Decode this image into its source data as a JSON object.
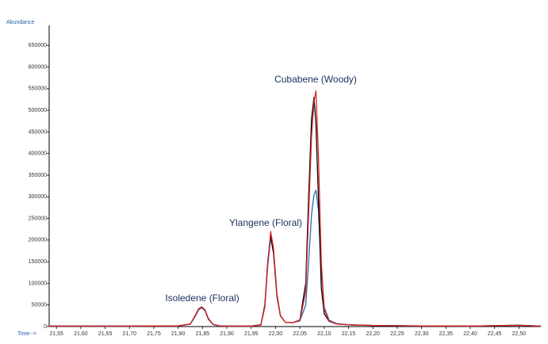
{
  "chart_data": {
    "type": "line",
    "x_label": "Time-->",
    "y_label": "Abundance",
    "annotations": [
      "Isoledene (Floral)",
      "Ylangene (Floral)",
      "Cubabene (Woody)"
    ],
    "x": [
      21.535,
      21.6,
      21.7,
      21.8,
      21.825,
      21.835,
      21.842,
      21.848,
      21.855,
      21.862,
      21.872,
      21.885,
      21.9,
      21.95,
      21.97,
      21.978,
      21.984,
      21.99,
      21.996,
      22.003,
      22.01,
      22.02,
      22.035,
      22.05,
      22.062,
      22.068,
      22.074,
      22.079,
      22.083,
      22.088,
      22.094,
      22.1,
      22.11,
      22.125,
      22.15,
      22.2,
      22.3,
      22.4,
      22.5,
      22.545
    ],
    "series": [
      {
        "color": "#1f6fb4",
        "values": [
          1000,
          1000,
          1000,
          1500,
          5500,
          24000,
          39000,
          44000,
          37000,
          17000,
          4500,
          1500,
          1000,
          1000,
          4000,
          48000,
          140000,
          205000,
          168000,
          70000,
          25000,
          10000,
          9000,
          13000,
          50000,
          150000,
          260000,
          305000,
          315000,
          270000,
          130000,
          45000,
          15000,
          7000,
          4000,
          2500,
          1500,
          1000,
          3000,
          1000
        ]
      },
      {
        "color": "#000000",
        "values": [
          1000,
          1000,
          1000,
          1500,
          6000,
          25000,
          40000,
          45000,
          38000,
          18000,
          5000,
          1500,
          1000,
          1000,
          4000,
          50000,
          150000,
          212000,
          170000,
          70000,
          25000,
          10000,
          9000,
          15000,
          100000,
          300000,
          480000,
          530000,
          470000,
          300000,
          90000,
          30000,
          12000,
          6000,
          4000,
          2500,
          1500,
          1000,
          3000,
          1000
        ]
      },
      {
        "color": "#e0262b",
        "values": [
          1000,
          1000,
          1000,
          1500,
          6000,
          26000,
          41000,
          46000,
          39000,
          19000,
          5000,
          1500,
          1000,
          1000,
          3500,
          45000,
          145000,
          220000,
          180000,
          75000,
          26000,
          10000,
          9000,
          14000,
          80000,
          260000,
          440000,
          520000,
          545000,
          400000,
          150000,
          40000,
          13000,
          6000,
          4000,
          2500,
          1500,
          1000,
          3000,
          1000
        ]
      }
    ],
    "xlim": [
      21.535,
      22.545
    ],
    "ylim": [
      0,
      700000
    ],
    "xticks": [
      {
        "value": 21.55,
        "label": "21,55"
      },
      {
        "value": 21.6,
        "label": "21,60"
      },
      {
        "value": 21.65,
        "label": "21,65"
      },
      {
        "value": 21.7,
        "label": "21,70"
      },
      {
        "value": 21.75,
        "label": "21,75"
      },
      {
        "value": 21.8,
        "label": "21,80"
      },
      {
        "value": 21.85,
        "label": "21,85"
      },
      {
        "value": 21.9,
        "label": "21,90"
      },
      {
        "value": 21.95,
        "label": "21,95"
      },
      {
        "value": 22.0,
        "label": "22,00"
      },
      {
        "value": 22.05,
        "label": "22,05"
      },
      {
        "value": 22.1,
        "label": "22,10"
      },
      {
        "value": 22.15,
        "label": "22,15"
      },
      {
        "value": 22.2,
        "label": "22,20"
      },
      {
        "value": 22.25,
        "label": "22,25"
      },
      {
        "value": 22.3,
        "label": "22,30"
      },
      {
        "value": 22.35,
        "label": "22,35"
      },
      {
        "value": 22.4,
        "label": "22,40"
      },
      {
        "value": 22.45,
        "label": "22,45"
      },
      {
        "value": 22.5,
        "label": "22,50"
      }
    ],
    "yticks": [
      0,
      50000,
      100000,
      150000,
      200000,
      250000,
      300000,
      350000,
      400000,
      450000,
      500000,
      550000,
      600000,
      650000
    ],
    "grid": false
  }
}
